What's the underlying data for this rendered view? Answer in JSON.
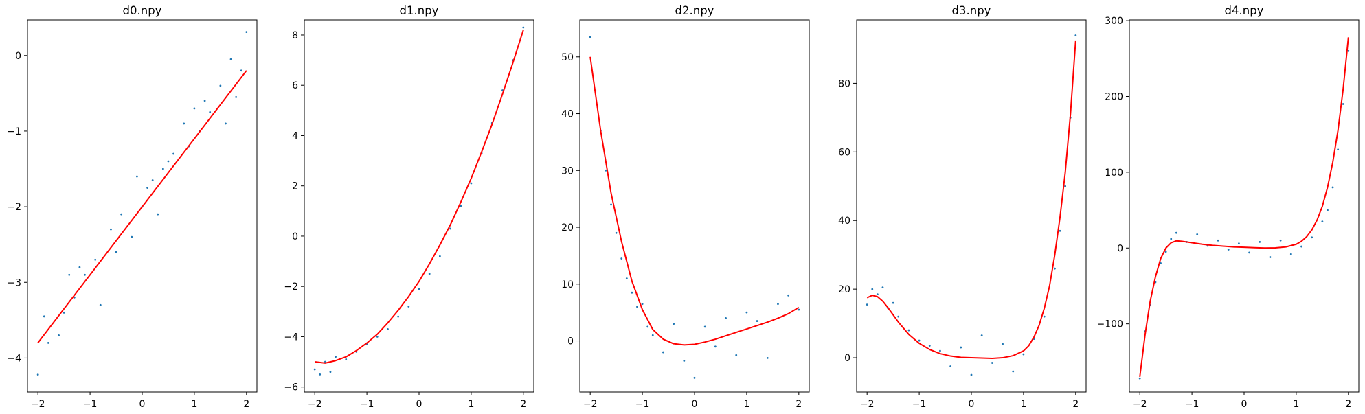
{
  "figure": {
    "background": "#ffffff"
  },
  "chart_data": [
    {
      "type": "scatter",
      "title": "d0.npy",
      "xlabel": "",
      "ylabel": "",
      "xlim": [
        -2.2,
        2.2
      ],
      "ylim": [
        -4.45,
        0.47
      ],
      "xticks": [
        -2,
        -1,
        0,
        1,
        2
      ],
      "xtick_labels": [
        "−2",
        "−1",
        "0",
        "1",
        "2"
      ],
      "yticks": [
        -4,
        -3,
        -2,
        -1,
        0
      ],
      "ytick_labels": [
        "−4",
        "−3",
        "−2",
        "−1",
        "0"
      ],
      "series": [
        {
          "kind": "scatter",
          "color": "#1f77b4",
          "x": [
            -2.0,
            -1.88,
            -1.8,
            -1.6,
            -1.5,
            -1.4,
            -1.3,
            -1.2,
            -1.1,
            -0.9,
            -0.8,
            -0.6,
            -0.5,
            -0.4,
            -0.2,
            -0.1,
            0.0,
            0.1,
            0.2,
            0.3,
            0.4,
            0.5,
            0.6,
            0.8,
            0.9,
            1.0,
            1.1,
            1.2,
            1.3,
            1.5,
            1.6,
            1.7,
            1.8,
            1.9,
            2.0
          ],
          "y": [
            -4.22,
            -3.45,
            -3.8,
            -3.7,
            -3.4,
            -2.9,
            -3.2,
            -2.8,
            -2.9,
            -2.7,
            -3.3,
            -2.3,
            -2.6,
            -2.1,
            -2.4,
            -1.6,
            -2.0,
            -1.75,
            -1.65,
            -2.1,
            -1.5,
            -1.4,
            -1.3,
            -0.9,
            -1.2,
            -0.7,
            -1.0,
            -0.6,
            -0.75,
            -0.4,
            -0.9,
            -0.05,
            -0.55,
            -0.2,
            0.31
          ]
        },
        {
          "kind": "line",
          "color": "#ff0000",
          "x": [
            -2.0,
            2.0
          ],
          "y": [
            -3.8,
            -0.2
          ]
        }
      ]
    },
    {
      "type": "scatter",
      "title": "d1.npy",
      "xlabel": "",
      "ylabel": "",
      "xlim": [
        -2.2,
        2.2
      ],
      "ylim": [
        -6.2,
        8.6
      ],
      "xticks": [
        -2,
        -1,
        0,
        1,
        2
      ],
      "xtick_labels": [
        "−2",
        "−1",
        "0",
        "1",
        "2"
      ],
      "yticks": [
        -6,
        -4,
        -2,
        0,
        2,
        4,
        6,
        8
      ],
      "ytick_labels": [
        "−6",
        "−4",
        "−2",
        "0",
        "2",
        "4",
        "6",
        "8"
      ],
      "series": [
        {
          "kind": "scatter",
          "color": "#1f77b4",
          "x": [
            -2.0,
            -1.9,
            -1.8,
            -1.7,
            -1.6,
            -1.4,
            -1.2,
            -1.0,
            -0.8,
            -0.6,
            -0.4,
            -0.2,
            0.0,
            0.2,
            0.4,
            0.6,
            0.8,
            1.0,
            1.2,
            1.4,
            1.6,
            1.8,
            2.0
          ],
          "y": [
            -5.3,
            -5.5,
            -5.0,
            -5.4,
            -4.8,
            -4.9,
            -4.6,
            -4.3,
            -4.0,
            -3.7,
            -3.2,
            -2.8,
            -2.1,
            -1.5,
            -0.8,
            0.3,
            1.2,
            2.1,
            3.3,
            4.5,
            5.8,
            7.0,
            8.3
          ]
        },
        {
          "kind": "line",
          "color": "#ff0000",
          "x": [
            -2.0,
            -1.8,
            -1.6,
            -1.4,
            -1.2,
            -1.0,
            -0.8,
            -0.6,
            -0.4,
            -0.2,
            0.0,
            0.2,
            0.4,
            0.6,
            0.8,
            1.0,
            1.2,
            1.4,
            1.6,
            1.8,
            2.0
          ],
          "y": [
            -5.0,
            -5.05,
            -4.95,
            -4.8,
            -4.55,
            -4.25,
            -3.9,
            -3.45,
            -2.95,
            -2.4,
            -1.8,
            -1.1,
            -0.35,
            0.45,
            1.35,
            2.3,
            3.35,
            4.45,
            5.65,
            6.9,
            8.2
          ]
        }
      ]
    },
    {
      "type": "scatter",
      "title": "d2.npy",
      "xlabel": "",
      "ylabel": "",
      "xlim": [
        -2.2,
        2.2
      ],
      "ylim": [
        -9.0,
        56.5
      ],
      "xticks": [
        -2,
        -1,
        0,
        1,
        2
      ],
      "xtick_labels": [
        "−2",
        "−1",
        "0",
        "1",
        "2"
      ],
      "yticks": [
        0,
        10,
        20,
        30,
        40,
        50
      ],
      "ytick_labels": [
        "0",
        "10",
        "20",
        "30",
        "40",
        "50"
      ],
      "series": [
        {
          "kind": "scatter",
          "color": "#1f77b4",
          "x": [
            -2.0,
            -1.9,
            -1.8,
            -1.7,
            -1.6,
            -1.5,
            -1.4,
            -1.3,
            -1.2,
            -1.1,
            -1.0,
            -0.9,
            -0.8,
            -0.6,
            -0.4,
            -0.2,
            0.0,
            0.2,
            0.4,
            0.6,
            0.8,
            1.0,
            1.2,
            1.4,
            1.6,
            1.8,
            2.0
          ],
          "y": [
            53.5,
            44.0,
            37.0,
            30.0,
            24.0,
            19.0,
            14.5,
            11.0,
            8.5,
            6.0,
            6.5,
            2.5,
            1.0,
            -2.0,
            3.0,
            -3.5,
            -6.5,
            2.5,
            -1.0,
            4.0,
            -2.5,
            5.0,
            3.5,
            -3.0,
            6.5,
            8.0,
            5.5
          ]
        },
        {
          "kind": "line",
          "color": "#ff0000",
          "x": [
            -2.0,
            -1.8,
            -1.6,
            -1.4,
            -1.2,
            -1.0,
            -0.8,
            -0.6,
            -0.4,
            -0.2,
            0.0,
            0.2,
            0.4,
            0.6,
            0.8,
            1.0,
            1.2,
            1.4,
            1.6,
            1.8,
            2.0
          ],
          "y": [
            50.0,
            37.0,
            26.0,
            17.5,
            10.5,
            5.5,
            2.0,
            0.3,
            -0.5,
            -0.7,
            -0.6,
            -0.2,
            0.3,
            0.9,
            1.5,
            2.1,
            2.7,
            3.3,
            4.0,
            4.8,
            5.9
          ]
        }
      ]
    },
    {
      "type": "scatter",
      "title": "d3.npy",
      "xlabel": "",
      "ylabel": "",
      "xlim": [
        -2.2,
        2.2
      ],
      "ylim": [
        -10.0,
        98.5
      ],
      "xticks": [
        -2,
        -1,
        0,
        1,
        2
      ],
      "xtick_labels": [
        "−2",
        "−1",
        "0",
        "1",
        "2"
      ],
      "yticks": [
        0,
        20,
        40,
        60,
        80
      ],
      "ytick_labels": [
        "0",
        "20",
        "40",
        "60",
        "80"
      ],
      "series": [
        {
          "kind": "scatter",
          "color": "#1f77b4",
          "x": [
            -2.0,
            -1.9,
            -1.8,
            -1.7,
            -1.6,
            -1.5,
            -1.4,
            -1.2,
            -1.0,
            -0.8,
            -0.6,
            -0.4,
            -0.2,
            0.0,
            0.2,
            0.4,
            0.6,
            0.8,
            1.0,
            1.2,
            1.4,
            1.6,
            1.7,
            1.8,
            1.9,
            2.0
          ],
          "y": [
            15.5,
            20.0,
            18.5,
            20.5,
            14.5,
            16.0,
            12.0,
            8.0,
            5.0,
            3.5,
            2.0,
            -2.5,
            3.0,
            -5.0,
            6.5,
            -1.5,
            4.0,
            -4.0,
            1.0,
            5.5,
            12.0,
            26.0,
            37.0,
            50.0,
            70.0,
            94.0
          ]
        },
        {
          "kind": "line",
          "color": "#ff0000",
          "x": [
            -2.0,
            -1.9,
            -1.8,
            -1.7,
            -1.6,
            -1.5,
            -1.4,
            -1.2,
            -1.0,
            -0.8,
            -0.6,
            -0.4,
            -0.2,
            0.0,
            0.2,
            0.4,
            0.6,
            0.8,
            1.0,
            1.1,
            1.2,
            1.3,
            1.4,
            1.5,
            1.6,
            1.7,
            1.8,
            1.9,
            2.0
          ],
          "y": [
            17.5,
            18.2,
            17.8,
            16.5,
            14.6,
            12.5,
            10.4,
            6.8,
            4.2,
            2.4,
            1.2,
            0.5,
            0.1,
            0.0,
            -0.1,
            -0.2,
            0.0,
            0.6,
            2.0,
            3.5,
            6.0,
            9.5,
            14.5,
            21.0,
            30.0,
            41.0,
            54.0,
            71.0,
            92.5
          ]
        }
      ]
    },
    {
      "type": "scatter",
      "title": "d4.npy",
      "xlabel": "",
      "ylabel": "",
      "xlim": [
        -2.2,
        2.2
      ],
      "ylim": [
        -190.0,
        301.0
      ],
      "xticks": [
        -2,
        -1,
        0,
        1,
        2
      ],
      "xtick_labels": [
        "−2",
        "−1",
        "0",
        "1",
        "2"
      ],
      "yticks": [
        -100,
        0,
        100,
        200,
        300
      ],
      "ytick_labels": [
        "−100",
        "0",
        "100",
        "200",
        "300"
      ],
      "series": [
        {
          "kind": "scatter",
          "color": "#1f77b4",
          "x": [
            -2.0,
            -1.9,
            -1.8,
            -1.7,
            -1.6,
            -1.5,
            -1.4,
            -1.3,
            -1.1,
            -0.9,
            -0.7,
            -0.5,
            -0.3,
            -0.1,
            0.1,
            0.3,
            0.5,
            0.7,
            0.9,
            1.1,
            1.3,
            1.5,
            1.6,
            1.7,
            1.8,
            1.9,
            2.0
          ],
          "y": [
            -172.0,
            -110.0,
            -75.0,
            -45.0,
            -20.0,
            -5.0,
            12.0,
            20.0,
            8.0,
            18.0,
            3.0,
            10.0,
            -2.0,
            6.0,
            -6.0,
            8.0,
            -12.0,
            10.0,
            -8.0,
            2.0,
            14.0,
            35.0,
            50.0,
            80.0,
            130.0,
            190.0,
            260.0
          ]
        },
        {
          "kind": "line",
          "color": "#ff0000",
          "x": [
            -2.0,
            -1.9,
            -1.8,
            -1.7,
            -1.6,
            -1.5,
            -1.4,
            -1.3,
            -1.2,
            -1.0,
            -0.8,
            -0.6,
            -0.4,
            -0.2,
            0.0,
            0.2,
            0.4,
            0.6,
            0.8,
            1.0,
            1.1,
            1.2,
            1.3,
            1.4,
            1.5,
            1.6,
            1.7,
            1.8,
            1.9,
            2.0
          ],
          "y": [
            -170.0,
            -115.0,
            -70.0,
            -38.0,
            -14.0,
            0.0,
            7.0,
            9.5,
            9.0,
            7.0,
            5.0,
            3.5,
            2.5,
            1.5,
            1.0,
            0.5,
            0.0,
            0.2,
            1.5,
            5.0,
            9.0,
            15.0,
            24.0,
            37.0,
            55.0,
            80.0,
            113.0,
            155.0,
            210.0,
            278.0
          ]
        }
      ]
    }
  ]
}
